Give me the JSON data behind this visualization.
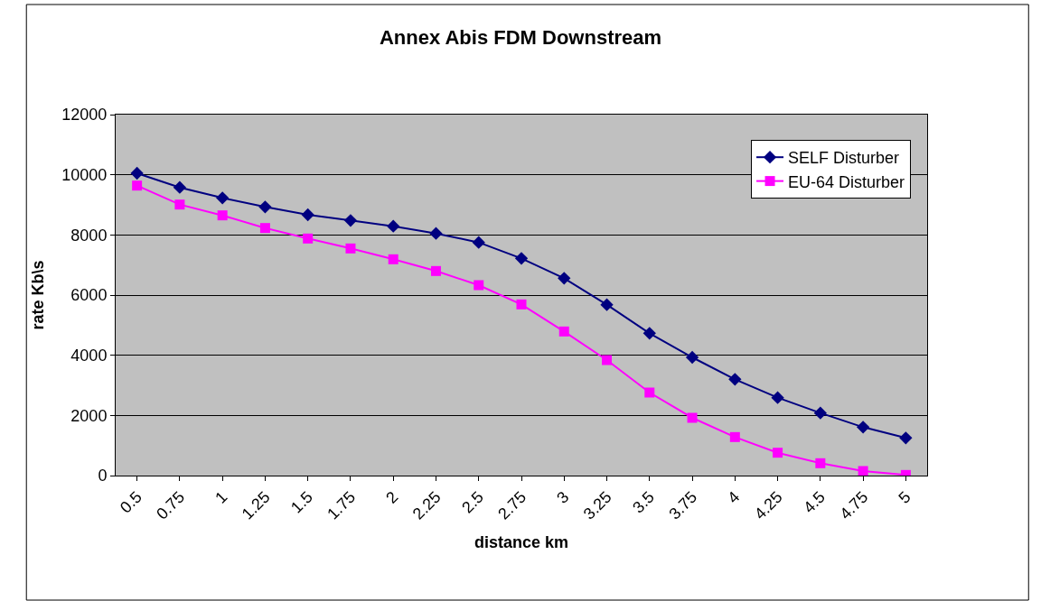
{
  "chart_data": {
    "type": "line",
    "title": "Annex Abis FDM Downstream",
    "xlabel": "distance km",
    "ylabel": "rate Kb\\s",
    "categories": [
      "0.5",
      "0.75",
      "1",
      "1.25",
      "1.5",
      "1.75",
      "2",
      "2.25",
      "2.5",
      "2.75",
      "3",
      "3.25",
      "3.5",
      "3.75",
      "4",
      "4.25",
      "4.5",
      "4.75",
      "5"
    ],
    "series": [
      {
        "name": "SELF Disturber",
        "color": "#000080",
        "marker": "diamond",
        "values": [
          10050,
          9580,
          9230,
          8930,
          8670,
          8480,
          8290,
          8050,
          7750,
          7220,
          6560,
          5680,
          4730,
          3930,
          3200,
          2590,
          2080,
          1610,
          1250
        ]
      },
      {
        "name": "EU-64 Disturber",
        "color": "#ff00ff",
        "marker": "square",
        "values": [
          9640,
          9010,
          8650,
          8230,
          7880,
          7550,
          7190,
          6800,
          6330,
          5690,
          4790,
          3840,
          2760,
          1920,
          1280,
          760,
          410,
          150,
          20
        ]
      }
    ],
    "ylim": [
      0,
      12000
    ],
    "yticks": [
      0,
      2000,
      4000,
      6000,
      8000,
      10000,
      12000
    ],
    "grid": "y",
    "legend": "top right",
    "line_style": "solid"
  }
}
